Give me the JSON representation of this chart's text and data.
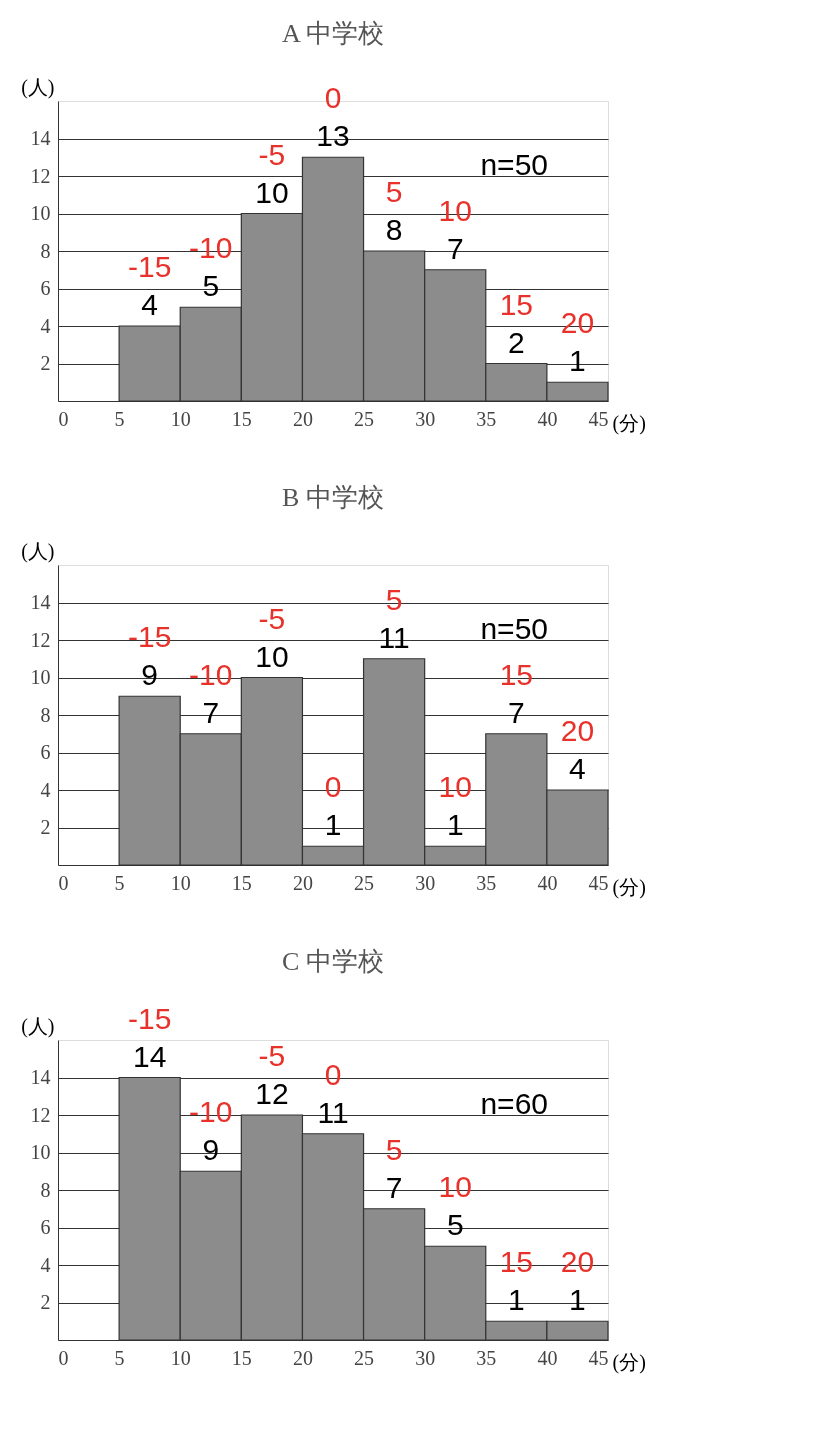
{
  "chart_data": [
    {
      "type": "histogram",
      "title": "A 中学校",
      "xlabel": "(分)",
      "ylabel": "(人)",
      "bins": [
        5,
        10,
        15,
        20,
        25,
        30,
        35,
        40,
        45
      ],
      "values": [
        4,
        5,
        10,
        13,
        8,
        7,
        2,
        1
      ],
      "color": "#8c8c8c",
      "xlim": [
        0,
        45
      ],
      "xticks": [
        0,
        5,
        10,
        15,
        20,
        25,
        30,
        35,
        40,
        45
      ],
      "ylim": [
        0,
        16
      ],
      "yticks": [
        2,
        4,
        6,
        8,
        10,
        12,
        14
      ],
      "grid": "y",
      "data_labels": true,
      "annotations": [
        {
          "text": "-15",
          "x": 7.5,
          "y": 4
        },
        {
          "text": "-10",
          "x": 12.5,
          "y": 5
        },
        {
          "text": "-5",
          "x": 17.5,
          "y": 10
        },
        {
          "text": "0",
          "x": 22.5,
          "y": 13
        },
        {
          "text": "5",
          "x": 27.5,
          "y": 8
        },
        {
          "text": "10",
          "x": 32.5,
          "y": 7
        },
        {
          "text": "15",
          "x": 37.5,
          "y": 2
        },
        {
          "text": "20",
          "x": 42.5,
          "y": 1
        },
        "n=50"
      ]
    },
    {
      "type": "histogram",
      "title": "B 中学校",
      "xlabel": "(分)",
      "ylabel": "(人)",
      "bins": [
        5,
        10,
        15,
        20,
        25,
        30,
        35,
        40,
        45
      ],
      "values": [
        9,
        7,
        10,
        1,
        11,
        1,
        7,
        4
      ],
      "color": "#8c8c8c",
      "xlim": [
        0,
        45
      ],
      "xticks": [
        0,
        5,
        10,
        15,
        20,
        25,
        30,
        35,
        40,
        45
      ],
      "ylim": [
        0,
        16
      ],
      "yticks": [
        2,
        4,
        6,
        8,
        10,
        12,
        14
      ],
      "grid": "y",
      "data_labels": true,
      "annotations": [
        {
          "text": "-15",
          "x": 7.5,
          "y": 9
        },
        {
          "text": "-10",
          "x": 12.5,
          "y": 7
        },
        {
          "text": "-5",
          "x": 17.5,
          "y": 10
        },
        {
          "text": "0",
          "x": 22.5,
          "y": 1
        },
        {
          "text": "5",
          "x": 27.5,
          "y": 11
        },
        {
          "text": "10",
          "x": 32.5,
          "y": 1
        },
        {
          "text": "15",
          "x": 37.5,
          "y": 7
        },
        {
          "text": "20",
          "x": 42.5,
          "y": 4
        },
        "n=50"
      ]
    },
    {
      "type": "histogram",
      "title": "C 中学校",
      "xlabel": "(分)",
      "ylabel": "(人)",
      "bins": [
        5,
        10,
        15,
        20,
        25,
        30,
        35,
        40,
        45
      ],
      "values": [
        14,
        9,
        12,
        11,
        7,
        5,
        1,
        1
      ],
      "color": "#8c8c8c",
      "xlim": [
        0,
        45
      ],
      "xticks": [
        0,
        5,
        10,
        15,
        20,
        25,
        30,
        35,
        40,
        45
      ],
      "ylim": [
        0,
        16
      ],
      "yticks": [
        2,
        4,
        6,
        8,
        10,
        12,
        14
      ],
      "grid": "y",
      "data_labels": true,
      "annotations": [
        {
          "text": "-15",
          "x": 7.5,
          "y": 14
        },
        {
          "text": "-10",
          "x": 12.5,
          "y": 9
        },
        {
          "text": "-5",
          "x": 17.5,
          "y": 12
        },
        {
          "text": "0",
          "x": 22.5,
          "y": 11
        },
        {
          "text": "5",
          "x": 27.5,
          "y": 7
        },
        {
          "text": "10",
          "x": 32.5,
          "y": 5
        },
        {
          "text": "15",
          "x": 37.5,
          "y": 1
        },
        {
          "text": "20",
          "x": 42.5,
          "y": 1
        },
        "n=60"
      ]
    }
  ]
}
